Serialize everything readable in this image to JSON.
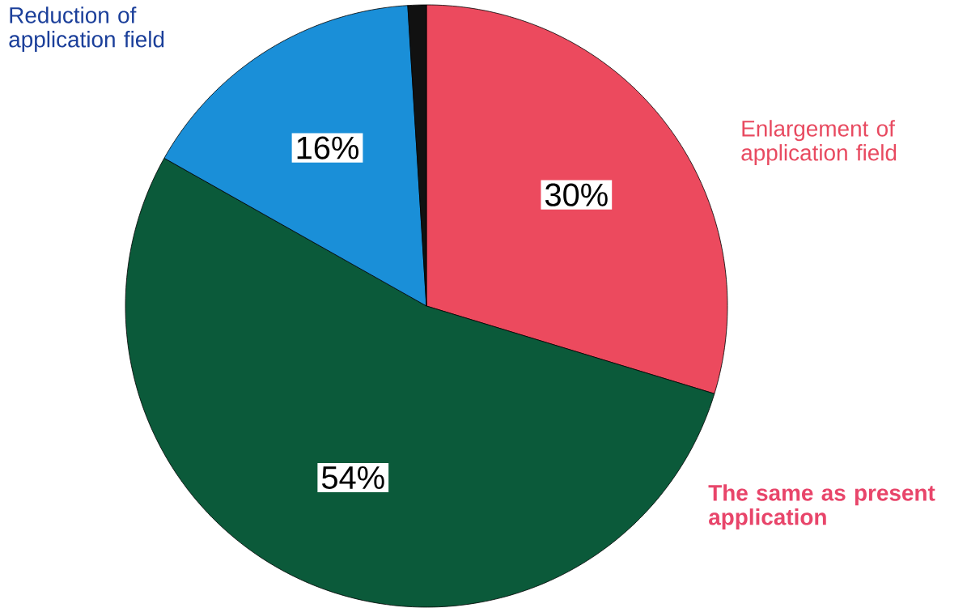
{
  "chart_data": {
    "type": "pie",
    "categories": [
      "Enlargement of application field",
      "The same as present application",
      "Reduction of application field",
      null
    ],
    "values": [
      30,
      54,
      16,
      1
    ],
    "colors": [
      "#ec4a5e",
      "#0b5a3a",
      "#1a8fd8",
      "#111111"
    ],
    "value_labels": [
      "30%",
      "54%",
      "16%",
      null
    ]
  }
}
